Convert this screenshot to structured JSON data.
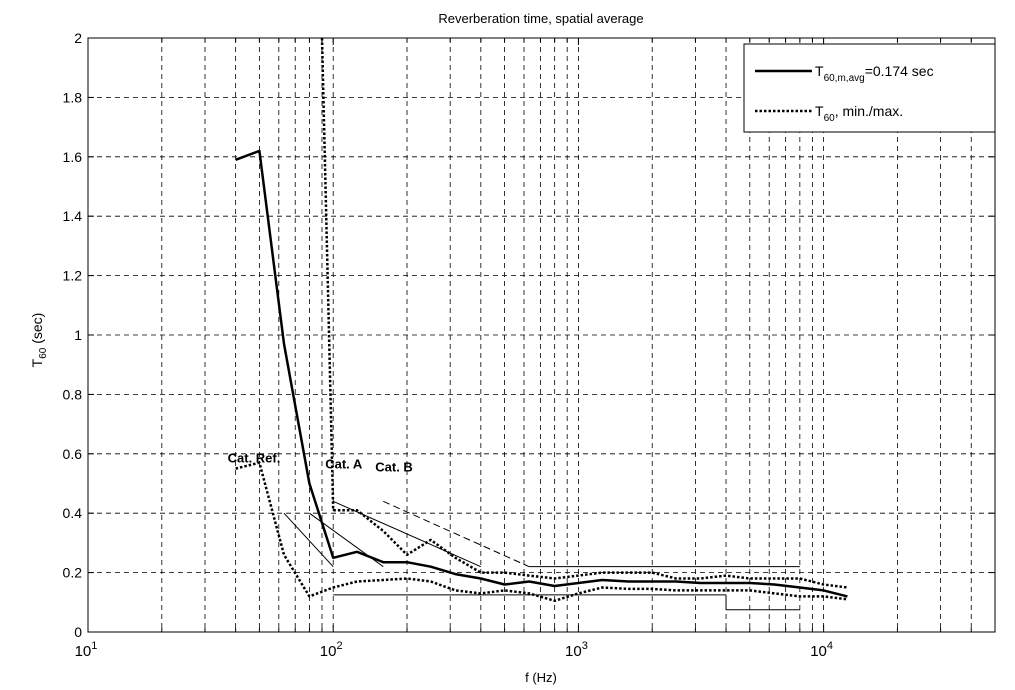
{
  "chart_data": {
    "type": "line",
    "title": "Reverberation time, spatial average",
    "xlabel": "f (Hz)",
    "ylabel": {
      "main": "T",
      "sub": "60",
      "unit": " (sec)"
    },
    "x_scale": "log",
    "xlim": [
      10,
      50000
    ],
    "ylim": [
      0,
      2
    ],
    "grid": true,
    "x_ticks": [
      {
        "base": "10",
        "exp": "1",
        "value": 10
      },
      {
        "base": "10",
        "exp": "2",
        "value": 100
      },
      {
        "base": "10",
        "exp": "3",
        "value": 1000
      },
      {
        "base": "10",
        "exp": "4",
        "value": 10000
      }
    ],
    "y_ticks": [
      {
        "label": "0",
        "value": 0
      },
      {
        "label": "0.2",
        "value": 0.2
      },
      {
        "label": "0.4",
        "value": 0.4
      },
      {
        "label": "0.6",
        "value": 0.6
      },
      {
        "label": "0.8",
        "value": 0.8
      },
      {
        "label": "1",
        "value": 1
      },
      {
        "label": "1.2",
        "value": 1.2
      },
      {
        "label": "1.4",
        "value": 1.4
      },
      {
        "label": "1.6",
        "value": 1.6
      },
      {
        "label": "1.8",
        "value": 1.8
      },
      {
        "label": "2",
        "value": 2
      }
    ],
    "legend": {
      "position": "top-right",
      "entries": [
        {
          "style": "solid",
          "main": "T",
          "sub": "60,m,avg",
          "rest": "=0.174 sec"
        },
        {
          "style": "dotted",
          "main": "T",
          "sub": "60",
          "rest": ", min./max."
        }
      ]
    },
    "series": [
      {
        "style": "solid",
        "x": [
          40,
          50,
          63,
          80,
          100,
          125,
          160,
          200,
          250,
          315,
          400,
          500,
          630,
          800,
          1000,
          1250,
          1600,
          2000,
          2500,
          3150,
          4000,
          5000,
          6300,
          8000,
          10000,
          12500
        ],
        "y": [
          1.59,
          1.62,
          0.97,
          0.5,
          0.25,
          0.27,
          0.235,
          0.235,
          0.22,
          0.195,
          0.18,
          0.16,
          0.17,
          0.155,
          0.165,
          0.175,
          0.17,
          0.17,
          0.17,
          0.165,
          0.165,
          0.165,
          0.16,
          0.15,
          0.14,
          0.12
        ]
      },
      {
        "style": "dotted",
        "x": [
          90,
          100,
          125,
          160,
          200,
          250,
          315,
          400,
          500,
          630,
          800,
          1000,
          1250,
          1600,
          2000,
          2500,
          3150,
          4000,
          5000,
          6300,
          8000,
          10000,
          12500
        ],
        "y": [
          2.0,
          0.41,
          0.41,
          0.34,
          0.26,
          0.31,
          0.25,
          0.2,
          0.2,
          0.19,
          0.18,
          0.19,
          0.2,
          0.2,
          0.2,
          0.18,
          0.18,
          0.19,
          0.18,
          0.18,
          0.18,
          0.16,
          0.15
        ]
      },
      {
        "style": "dotted",
        "x": [
          40,
          50,
          63,
          80,
          100,
          125,
          160,
          200,
          250,
          315,
          400,
          500,
          630,
          800,
          1000,
          1250,
          1600,
          2000,
          2500,
          3150,
          4000,
          5000,
          6300,
          8000,
          10000,
          12500
        ],
        "y": [
          0.55,
          0.57,
          0.26,
          0.12,
          0.15,
          0.17,
          0.175,
          0.18,
          0.17,
          0.14,
          0.13,
          0.14,
          0.13,
          0.105,
          0.13,
          0.15,
          0.145,
          0.145,
          0.14,
          0.14,
          0.14,
          0.14,
          0.13,
          0.12,
          0.12,
          0.11
        ]
      }
    ],
    "reference_lines": [
      {
        "label": "Cat. Ref.",
        "style": "thin",
        "x": [
          63,
          100
        ],
        "y": [
          0.4,
          0.22
        ]
      },
      {
        "label": "",
        "style": "thin",
        "x": [
          80,
          160
        ],
        "y": [
          0.4,
          0.22
        ]
      },
      {
        "label": "Cat. A",
        "style": "thin",
        "x": [
          100,
          400
        ],
        "y": [
          0.44,
          0.22
        ]
      },
      {
        "label": "Cat. B",
        "style": "thin-dashed",
        "x": [
          160,
          630
        ],
        "y": [
          0.44,
          0.22
        ]
      },
      {
        "label": "",
        "style": "thin",
        "x": [
          630,
          8000
        ],
        "y": [
          0.22,
          0.22
        ]
      },
      {
        "label": "",
        "style": "thin",
        "x": [
          100,
          4000
        ],
        "y": [
          0.125,
          0.125
        ]
      },
      {
        "label": "",
        "style": "thin",
        "x": [
          4000,
          4000
        ],
        "y": [
          0.125,
          0.075
        ]
      },
      {
        "label": "",
        "style": "thin",
        "x": [
          4000,
          8000
        ],
        "y": [
          0.075,
          0.075
        ]
      }
    ],
    "annotations": [
      {
        "text": "Cat. Ref.",
        "x": 40,
        "y": 0.57
      },
      {
        "text": "Cat. A",
        "x": 100,
        "y": 0.55
      },
      {
        "text": "Cat. B",
        "x": 160,
        "y": 0.54
      }
    ]
  }
}
